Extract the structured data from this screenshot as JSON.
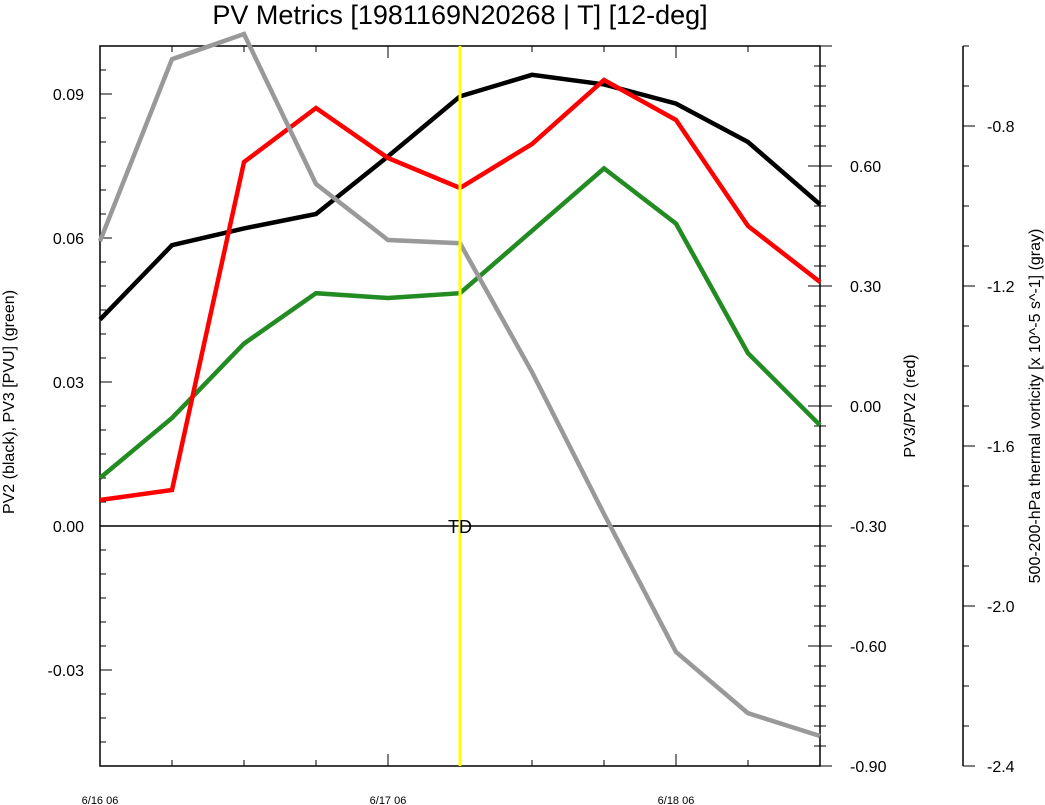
{
  "chart_data": {
    "type": "line",
    "title": "PV Metrics [1981169N20268 | T] [12-deg]",
    "x_tick_labels": [
      "6/16 06",
      "6/17 06",
      "6/18 06"
    ],
    "x_tick_values": [
      0,
      24,
      48
    ],
    "xlim": [
      0,
      60
    ],
    "axes": {
      "left": {
        "label": "PV2 (black), PV3 [PVU] (green)",
        "ylim": [
          -0.05,
          0.1
        ],
        "tick_labels": [
          "-0.03",
          "0.00",
          "0.03",
          "0.06",
          "0.09"
        ],
        "tick_values": [
          -0.03,
          0.0,
          0.03,
          0.06,
          0.09
        ]
      },
      "right1": {
        "label": "PV3/PV2 (red)",
        "ylim": [
          -0.9,
          0.9
        ],
        "tick_labels": [
          "-0.90",
          "-0.60",
          "-0.30",
          "0.00",
          "0.30",
          "0.60"
        ],
        "tick_values": [
          -0.9,
          -0.6,
          -0.3,
          0.0,
          0.3,
          0.6
        ]
      },
      "right2": {
        "label": "500-200-hPa thermal vorticity [x 10^-5 s^-1] (gray)",
        "ylim": [
          -2.4,
          -0.6
        ],
        "tick_labels": [
          "-2.4",
          "-2.0",
          "-1.6",
          "-1.2",
          "-0.8"
        ],
        "tick_values": [
          -2.4,
          -2.0,
          -1.6,
          -1.2,
          -0.8
        ]
      }
    },
    "x": [
      0,
      6,
      12,
      18,
      24,
      30,
      36,
      42,
      48,
      54,
      60
    ],
    "series": [
      {
        "axis": "left",
        "color": "#000000",
        "values": [
          0.043,
          0.0585,
          0.062,
          0.065,
          0.077,
          0.0895,
          0.094,
          0.092,
          0.088,
          0.08,
          0.067
        ]
      },
      {
        "axis": "left",
        "color": "#228b22",
        "values": [
          0.01,
          0.0225,
          0.038,
          0.0485,
          0.0475,
          0.0485,
          0.0615,
          0.0745,
          0.063,
          0.036,
          0.021
        ]
      },
      {
        "axis": "right1",
        "color": "#ff0000",
        "values": [
          -0.235,
          -0.21,
          0.61,
          0.745,
          0.62,
          0.545,
          0.655,
          0.815,
          0.715,
          0.45,
          0.31
        ]
      },
      {
        "axis": "right2",
        "color": "#999999",
        "values": [
          -1.088,
          -0.633,
          -0.57,
          -0.945,
          -1.085,
          -1.093,
          -1.415,
          -1.77,
          -2.115,
          -2.268,
          -2.325
        ]
      }
    ],
    "zero_line": {
      "axis": "left",
      "value": 0.0
    },
    "marker": {
      "x": 30,
      "color": "#ffff00",
      "label": "TD"
    }
  }
}
